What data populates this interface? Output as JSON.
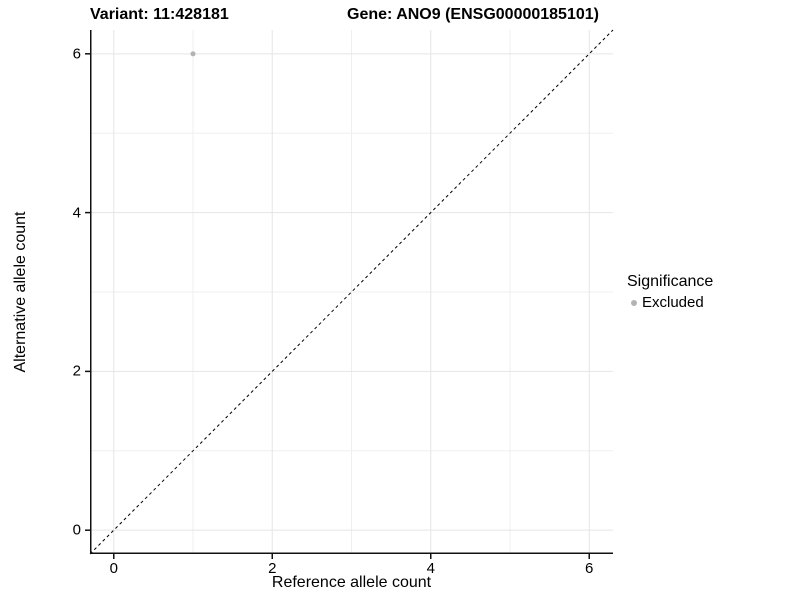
{
  "chart_data": {
    "type": "scatter",
    "variant_title": "Variant: 11:428181",
    "gene_title": "Gene: ANO9 (ENSG00000185101)",
    "xlabel": "Reference allele count",
    "ylabel": "Alternative allele count",
    "xlim": [
      -0.3,
      6.3
    ],
    "ylim": [
      -0.3,
      6.3
    ],
    "xticks": [
      0,
      2,
      4,
      6
    ],
    "yticks": [
      0,
      2,
      4,
      6
    ],
    "grid": {
      "minor_x": [
        1,
        3,
        5
      ],
      "minor_y": [
        1,
        3,
        5
      ],
      "grid_on": true
    },
    "series": [
      {
        "name": "Excluded",
        "color": "#b3b3b3",
        "points": [
          [
            1,
            6
          ]
        ]
      }
    ],
    "identity_line": {
      "style": "dashed",
      "slope": 1,
      "intercept": 0,
      "dash": "3,3"
    },
    "legend": {
      "title": "Significance",
      "position": "right",
      "entries": [
        {
          "label": "Excluded",
          "color": "#b3b3b3",
          "marker": "circle"
        }
      ]
    },
    "colors": {
      "background": "#ffffff",
      "grid_major": "#e5e5e5",
      "grid_minor": "#efefef",
      "axis": "#111111",
      "identity_line": "#000000",
      "text": "#000000"
    }
  }
}
